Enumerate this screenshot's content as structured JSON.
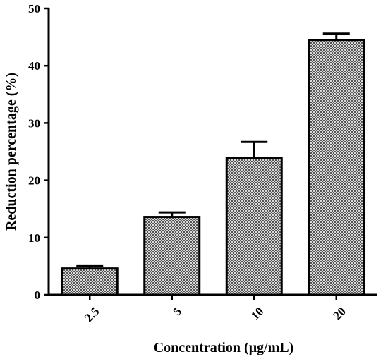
{
  "chart_data": {
    "type": "bar",
    "title": "",
    "xlabel": "Concentration (μg/mL)",
    "ylabel": "Reduction percentage (%)",
    "categories": [
      "2.5",
      "5",
      "10",
      "20"
    ],
    "values": [
      4.6,
      13.6,
      23.9,
      44.5
    ],
    "error": [
      0.4,
      0.8,
      2.8,
      1.1
    ],
    "ylim": [
      0,
      50
    ],
    "yticks": [
      "0",
      "10",
      "20",
      "30",
      "40",
      "50"
    ],
    "grid": false,
    "legend": "none",
    "bar_fill": "checkered gray pattern",
    "colors": {
      "bar_edge": "#000000",
      "bar_dark": "#555555",
      "bar_light": "#d8d8d8"
    }
  }
}
